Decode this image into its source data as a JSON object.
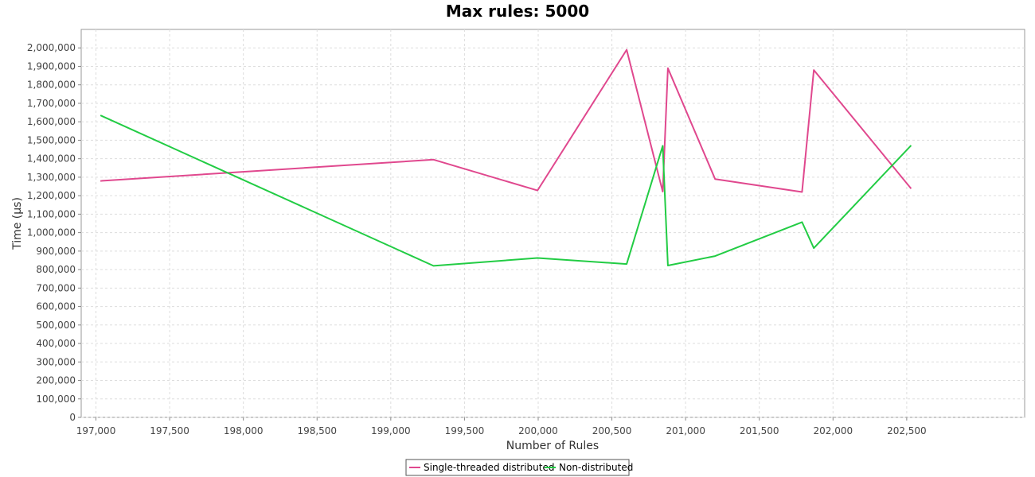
{
  "chart_data": {
    "type": "line",
    "title": "Max rules: 5000",
    "xlabel": "Number of Rules",
    "ylabel": "Time (µs)",
    "xlim": [
      196900,
      203300
    ],
    "ylim": [
      0,
      2100000
    ],
    "x_ticks": [
      197000,
      197500,
      198000,
      198500,
      199000,
      199500,
      200000,
      200500,
      201000,
      201500,
      202000,
      202500
    ],
    "x_tick_labels": [
      "197,000",
      "197,500",
      "198,000",
      "198,500",
      "199,000",
      "199,500",
      "200,000",
      "200,500",
      "201,000",
      "201,500",
      "202,000",
      "202,500"
    ],
    "y_ticks": [
      0,
      100000,
      200000,
      300000,
      400000,
      500000,
      600000,
      700000,
      800000,
      900000,
      1000000,
      1100000,
      1200000,
      1300000,
      1400000,
      1500000,
      1600000,
      1700000,
      1800000,
      1900000,
      2000000
    ],
    "y_tick_labels": [
      "0",
      "100,000",
      "200,000",
      "300,000",
      "400,000",
      "500,000",
      "600,000",
      "700,000",
      "800,000",
      "900,000",
      "1,000,000",
      "1,100,000",
      "1,200,000",
      "1,300,000",
      "1,400,000",
      "1,500,000",
      "1,600,000",
      "1,700,000",
      "1,800,000",
      "1,900,000",
      "2,000,000"
    ],
    "grid": true,
    "legend_position": "bottom-center",
    "series": [
      {
        "name": "Single-threaded distributed",
        "color": "#e0488e",
        "points": [
          [
            197030,
            1280000
          ],
          [
            199290,
            1395000
          ],
          [
            199995,
            1228000
          ],
          [
            200600,
            1990000
          ],
          [
            200845,
            1222000
          ],
          [
            200880,
            1890000
          ],
          [
            201200,
            1290000
          ],
          [
            201790,
            1220000
          ],
          [
            201870,
            1880000
          ],
          [
            202530,
            1238000
          ]
        ]
      },
      {
        "name": "Non-distributed",
        "color": "#22cc44",
        "points": [
          [
            197030,
            1635000
          ],
          [
            199290,
            820000
          ],
          [
            199995,
            863000
          ],
          [
            200600,
            830000
          ],
          [
            200845,
            1470000
          ],
          [
            200880,
            822000
          ],
          [
            201200,
            873000
          ],
          [
            201790,
            1057000
          ],
          [
            201870,
            916000
          ],
          [
            202530,
            1472000
          ]
        ]
      }
    ]
  }
}
